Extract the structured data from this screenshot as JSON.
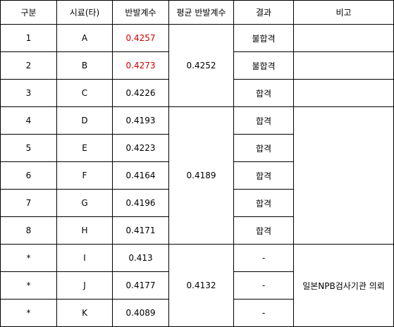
{
  "headers": [
    "구분",
    "시료(타)",
    "반발계수",
    "평균 반발계수",
    "결과",
    "비고"
  ],
  "rows": [
    {
      "no": "1",
      "sample": "A",
      "cor": "0.4257",
      "result": "불합격",
      "cor_color": "#cc0000"
    },
    {
      "no": "2",
      "sample": "B",
      "cor": "0.4273",
      "result": "불합격",
      "cor_color": "#cc0000"
    },
    {
      "no": "3",
      "sample": "C",
      "cor": "0.4226",
      "result": "합격"
    },
    {
      "no": "4",
      "sample": "D",
      "cor": "0.4193",
      "result": "합격"
    },
    {
      "no": "5",
      "sample": "E",
      "cor": "0.4223",
      "result": "합격"
    },
    {
      "no": "6",
      "sample": "F",
      "cor": "0.4164",
      "result": "합격"
    },
    {
      "no": "7",
      "sample": "G",
      "cor": "0.4196",
      "result": "합격"
    },
    {
      "no": "8",
      "sample": "H",
      "cor": "0.4171",
      "result": "합격"
    },
    {
      "no": "*",
      "sample": "I",
      "cor": "0.413",
      "result": "-"
    },
    {
      "no": "*",
      "sample": "J",
      "cor": "0.4177",
      "result": "-"
    },
    {
      "no": "*",
      "sample": "K",
      "cor": "0.4089",
      "result": "-"
    }
  ],
  "groups": [
    {
      "average": "0.4252",
      "note": ""
    },
    {
      "average": "0.4189",
      "note": ""
    },
    {
      "average": "0.4132",
      "note": "일본NPB검사기관 의뢰"
    }
  ]
}
